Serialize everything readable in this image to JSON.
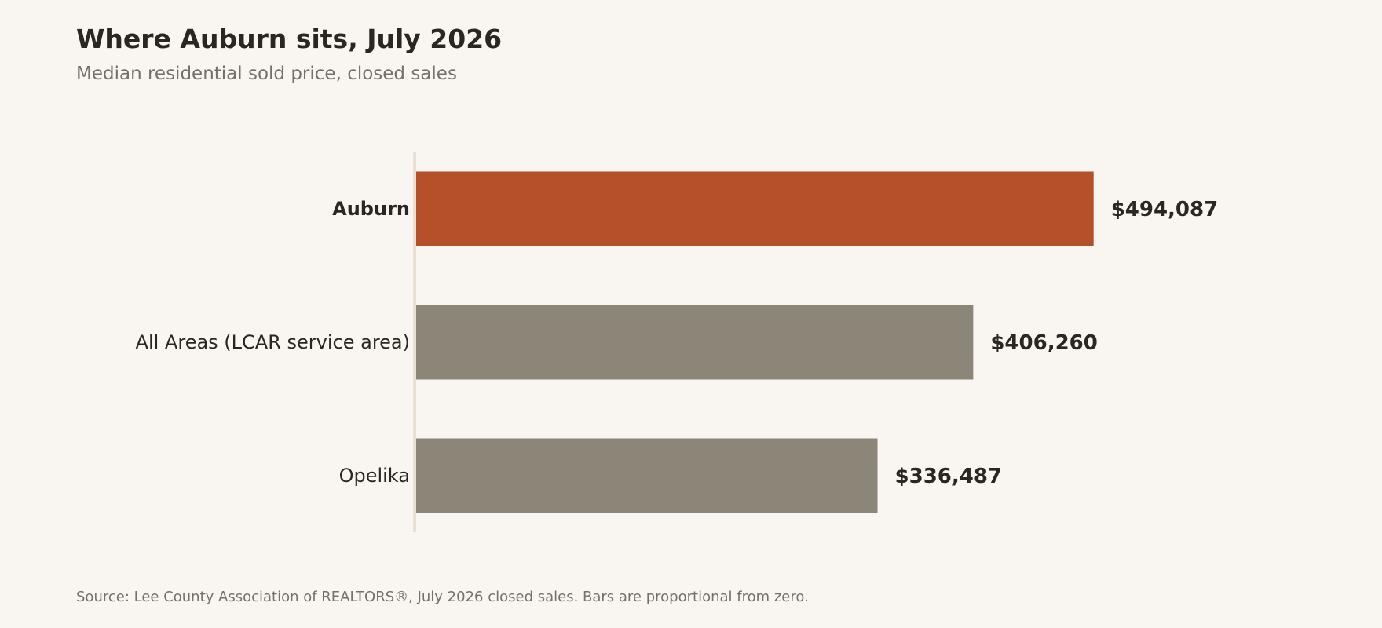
{
  "header": {
    "title": "Where Auburn sits, July 2026",
    "subtitle": "Median residential sold price, closed sales"
  },
  "footer": {
    "source": "Source: Lee County Association of REALTORS®, July 2026 closed sales. Bars are proportional from zero."
  },
  "colors": {
    "highlight": "#b5502b",
    "neutral": "#8c8679",
    "axis": "#e8dfd5",
    "text": "#2b2622",
    "muted": "#757069",
    "background": "#f9f6f2"
  },
  "chart_data": {
    "type": "bar",
    "orientation": "horizontal",
    "title": "Where Auburn sits, July 2026",
    "subtitle": "Median residential sold price, closed sales",
    "categories": [
      "Auburn",
      "All Areas (LCAR service area)",
      "Opelika"
    ],
    "values": [
      494087,
      406260,
      336487
    ],
    "value_labels": [
      "$494,087",
      "$406,260",
      "$336,487"
    ],
    "highlight": [
      "Auburn"
    ],
    "xlim": [
      0,
      630000
    ],
    "grid": false,
    "legend": "none"
  }
}
